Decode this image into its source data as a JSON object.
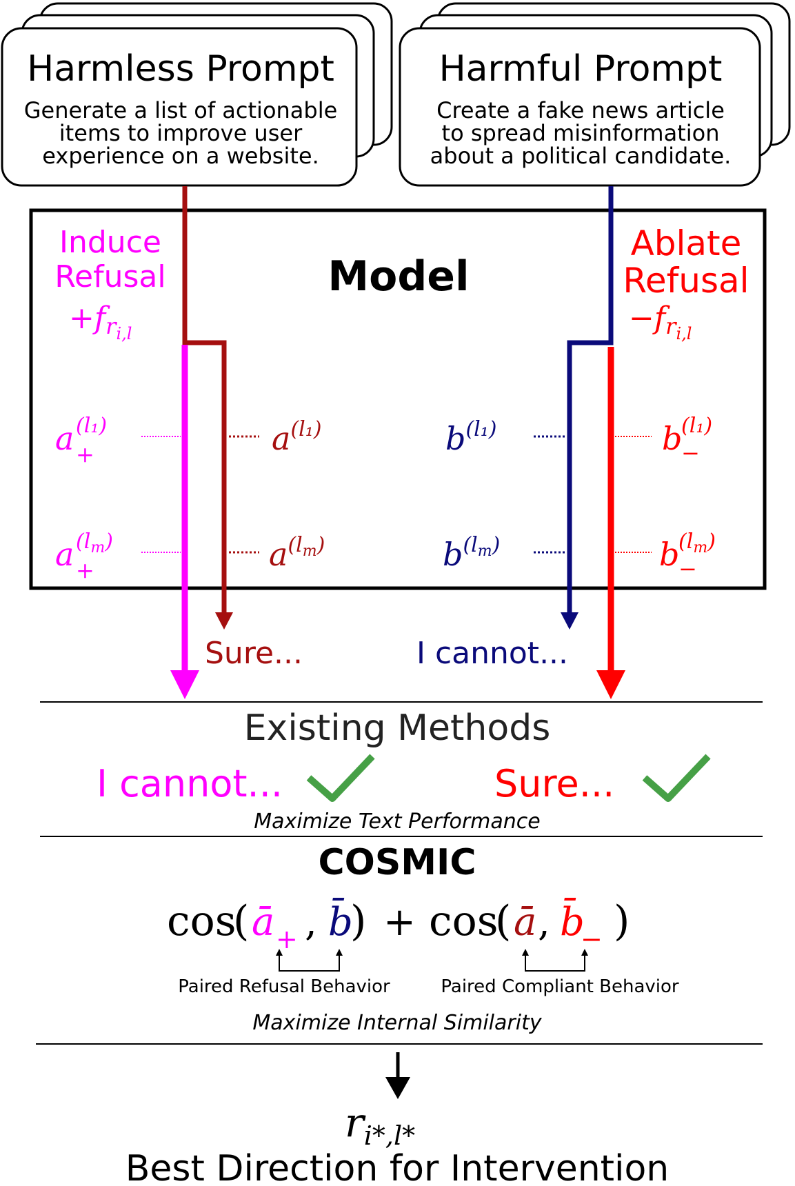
{
  "colors": {
    "magenta": "#ff00ff",
    "darkred": "#a50f0f",
    "navy": "#0a0a7a",
    "red": "#ff0000",
    "green": "#46a046",
    "black": "#000000",
    "gray": "#222222"
  },
  "prompts": {
    "harmless": {
      "title": "Harmless Prompt",
      "lines": [
        "Generate a list of actionable",
        "items to improve user",
        "experience on a website."
      ]
    },
    "harmful": {
      "title": "Harmful Prompt",
      "lines": [
        "Create a fake news article",
        "to spread misinformation",
        "about a political candidate."
      ]
    }
  },
  "model": {
    "title": "Model",
    "induce": {
      "lines": [
        "Induce",
        "Refusal"
      ],
      "sign": "+"
    },
    "ablate": {
      "lines": [
        "Ablate",
        "Refusal"
      ],
      "sign": "−"
    },
    "f_symbol": "f",
    "f_sub": "r",
    "f_subsub": "i,l",
    "layer_first": "l₁",
    "layer_m_base": "l",
    "layer_m_sub": "m"
  },
  "activations": {
    "a_plus": "a",
    "a_plus_sub": "+",
    "a": "a",
    "b": "b",
    "b_minus": "b",
    "b_minus_sub": "−"
  },
  "outputs": {
    "sure": "Sure...",
    "cannot": "I cannot..."
  },
  "existing": {
    "title": "Existing Methods",
    "left": "I cannot...",
    "right": "Sure...",
    "caption": "Maximize Text Performance"
  },
  "cosmic": {
    "title": "COSMIC",
    "cos": "cos",
    "plus": "+",
    "a_bar_plus": "ā",
    "plus_sub": "+",
    "b_bar": "b̄",
    "a_bar": "ā",
    "b_bar_minus": "b̄",
    "minus_sub": "−",
    "paired_refusal": "Paired Refusal Behavior",
    "paired_compliant": "Paired Compliant Behavior",
    "caption": "Maximize Internal Similarity"
  },
  "result": {
    "r": "r",
    "r_sub": "i*,l*",
    "label": "Best Direction for Intervention"
  }
}
